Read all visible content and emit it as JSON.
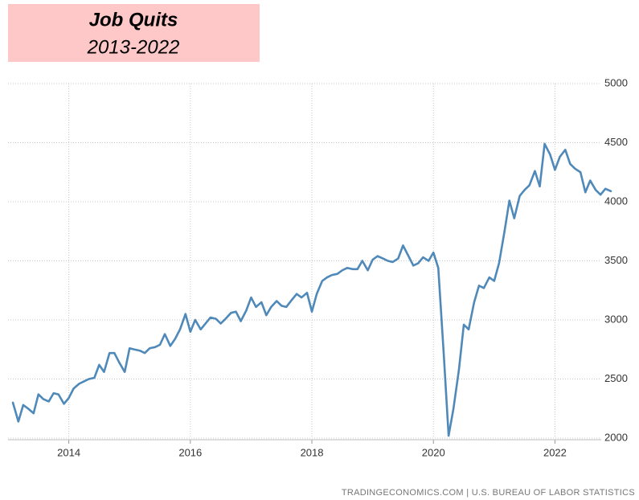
{
  "chart_data": {
    "type": "line",
    "title": "Job Quits",
    "subtitle": "2013-2022",
    "source": "TRADINGECONOMICS.COM  |  U.S. BUREAU OF LABOR STATISTICS",
    "x": [
      2013.08,
      2013.17,
      2013.25,
      2013.33,
      2013.42,
      2013.5,
      2013.58,
      2013.67,
      2013.75,
      2013.83,
      2013.92,
      2014,
      2014.08,
      2014.17,
      2014.25,
      2014.33,
      2014.42,
      2014.5,
      2014.58,
      2014.67,
      2014.75,
      2014.83,
      2014.92,
      2015,
      2015.08,
      2015.17,
      2015.25,
      2015.33,
      2015.42,
      2015.5,
      2015.58,
      2015.67,
      2015.75,
      2015.83,
      2015.92,
      2016,
      2016.08,
      2016.17,
      2016.25,
      2016.33,
      2016.42,
      2016.5,
      2016.58,
      2016.67,
      2016.75,
      2016.83,
      2016.92,
      2017,
      2017.08,
      2017.17,
      2017.25,
      2017.33,
      2017.42,
      2017.5,
      2017.58,
      2017.67,
      2017.75,
      2017.83,
      2017.92,
      2018,
      2018.08,
      2018.17,
      2018.25,
      2018.33,
      2018.42,
      2018.5,
      2018.58,
      2018.67,
      2018.75,
      2018.83,
      2018.92,
      2019,
      2019.08,
      2019.17,
      2019.25,
      2019.33,
      2019.42,
      2019.5,
      2019.58,
      2019.67,
      2019.75,
      2019.83,
      2019.92,
      2020,
      2020.08,
      2020.17,
      2020.25,
      2020.33,
      2020.42,
      2020.5,
      2020.58,
      2020.67,
      2020.75,
      2020.83,
      2020.92,
      2021,
      2021.08,
      2021.17,
      2021.25,
      2021.33,
      2021.42,
      2021.5,
      2021.58,
      2021.67,
      2021.75,
      2021.83,
      2021.92,
      2022,
      2022.08,
      2022.17,
      2022.25,
      2022.33,
      2022.42,
      2022.5,
      2022.58,
      2022.67,
      2022.75,
      2022.83,
      2022.92
    ],
    "series": [
      {
        "name": "Job Quits",
        "color": "#4f89b9",
        "values": [
          2300,
          2140,
          2280,
          2250,
          2210,
          2370,
          2330,
          2310,
          2380,
          2370,
          2290,
          2340,
          2420,
          2460,
          2480,
          2500,
          2510,
          2620,
          2560,
          2720,
          2720,
          2640,
          2560,
          2760,
          2750,
          2740,
          2720,
          2760,
          2770,
          2790,
          2880,
          2780,
          2840,
          2920,
          3050,
          2900,
          3000,
          2920,
          2970,
          3020,
          3010,
          2970,
          3010,
          3060,
          3070,
          2990,
          3080,
          3190,
          3110,
          3150,
          3040,
          3110,
          3160,
          3120,
          3110,
          3170,
          3220,
          3190,
          3230,
          3070,
          3220,
          3330,
          3360,
          3380,
          3390,
          3420,
          3440,
          3430,
          3430,
          3500,
          3420,
          3510,
          3540,
          3520,
          3500,
          3490,
          3520,
          3630,
          3550,
          3460,
          3480,
          3530,
          3500,
          3570,
          3440,
          2710,
          2020,
          2250,
          2580,
          2960,
          2920,
          3150,
          3290,
          3270,
          3360,
          3330,
          3480,
          3750,
          4010,
          3860,
          4050,
          4100,
          4140,
          4260,
          4130,
          4490,
          4400,
          4270,
          4380,
          4440,
          4320,
          4280,
          4250,
          4080,
          4180,
          4100,
          4060,
          4110,
          4090
        ]
      }
    ],
    "xlim": [
      2013,
      2022.92
    ],
    "xticks": [
      2014,
      2016,
      2018,
      2020,
      2022
    ],
    "ylim": [
      2000,
      5000
    ],
    "yticks": [
      2000,
      2500,
      3000,
      3500,
      4000,
      4500,
      5000
    ],
    "grid": true
  }
}
